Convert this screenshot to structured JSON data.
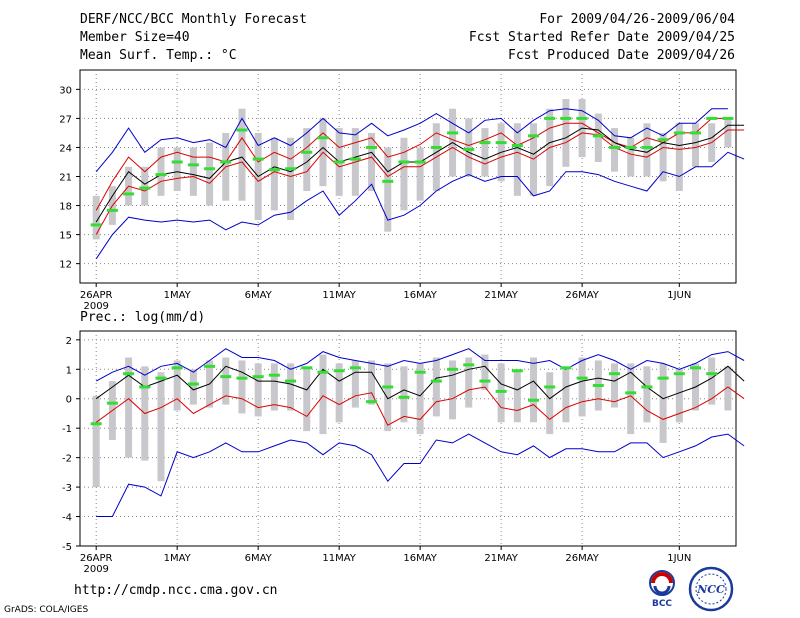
{
  "header": {
    "title": "DERF/NCC/BCC Monthly Forecast",
    "member": "Member Size=40",
    "variable": "Mean Surf. Temp.: °C",
    "period": "For 2009/04/26-2009/06/04",
    "refer": "Fcst Started Refer Date 2009/04/25",
    "produced": "Fcst Produced Date 2009/04/26"
  },
  "footer": {
    "url": "http://cmdp.ncc.cma.gov.cn",
    "credit": "GrADS: COLA/IGES"
  },
  "logos": {
    "left": "BCC",
    "right": "NCC"
  },
  "colors": {
    "max_min": "#0000cc",
    "spread": "#dd0000",
    "mean": "#000000",
    "obs": "#33dd33",
    "box": "#c8c8cc",
    "grid": "#888888"
  },
  "chart_data": [
    {
      "type": "line",
      "title": "Mean Surf. Temp.: °C",
      "ylabel": "Mean Surf. Temp.: °C",
      "ylim": [
        10,
        32
      ],
      "yticks": [
        12,
        15,
        18,
        21,
        24,
        27,
        30
      ],
      "xticks": [
        {
          "day": 0,
          "label": "26APR",
          "sub": "2009"
        },
        {
          "day": 5,
          "label": "1MAY"
        },
        {
          "day": 10,
          "label": "6MAY"
        },
        {
          "day": 15,
          "label": "11MAY"
        },
        {
          "day": 20,
          "label": "16MAY"
        },
        {
          "day": 25,
          "label": "21MAY"
        },
        {
          "day": 30,
          "label": "26MAY"
        },
        {
          "day": 36,
          "label": "1JUN"
        }
      ],
      "xlim": [
        -1,
        39.5
      ],
      "series": [
        {
          "name": "max",
          "values": [
            21.5,
            23.5,
            26,
            23.5,
            24.8,
            25,
            24.5,
            24.8,
            24,
            27,
            24.2,
            25,
            24.2,
            25.5,
            27,
            25.5,
            25.3,
            26.5,
            25.2,
            25.8,
            26.5,
            27.5,
            26.5,
            25.5,
            26.8,
            27,
            25.5,
            26.8,
            27.8,
            28,
            27.8,
            26.8,
            25.2,
            25,
            26,
            25.2,
            26.5,
            26.5,
            28,
            28
          ]
        },
        {
          "name": "upper",
          "values": [
            17.5,
            20.5,
            23,
            21.5,
            23,
            23.5,
            23,
            23,
            22.5,
            25,
            22.5,
            23.5,
            22.8,
            24,
            25.5,
            24,
            24.5,
            25,
            23,
            23.5,
            24.3,
            25.5,
            24.8,
            24.2,
            24.8,
            25.5,
            24.2,
            25,
            26,
            26.5,
            26.5,
            25.5,
            24.5,
            24,
            25,
            24.5,
            25.5,
            25.5,
            27,
            27
          ]
        },
        {
          "name": "mean",
          "values": [
            16.3,
            19,
            21.5,
            20.2,
            21.2,
            21.5,
            21.2,
            20.8,
            22.5,
            23,
            21,
            22,
            21.5,
            22.5,
            24,
            22.5,
            23,
            23.5,
            21.5,
            22.5,
            22.5,
            23.5,
            24.5,
            23.5,
            22.8,
            23.5,
            24,
            23.3,
            24.5,
            25,
            26,
            25.8,
            24.5,
            23.8,
            23.5,
            24.5,
            24.2,
            24.5,
            25,
            26.3,
            26.3
          ]
        },
        {
          "name": "lower",
          "values": [
            15,
            18,
            20,
            19.5,
            20.5,
            20.8,
            21,
            20.3,
            22,
            22.5,
            20.5,
            21.5,
            21,
            21.5,
            23.5,
            22,
            22.5,
            23,
            21,
            22,
            22,
            23,
            24,
            23,
            22.3,
            23,
            23.5,
            22.8,
            24,
            24.5,
            25.5,
            25.3,
            24,
            23.3,
            23,
            24,
            23.8,
            24,
            24.5,
            25.8,
            25.8
          ]
        },
        {
          "name": "min",
          "values": [
            12.5,
            15,
            16.8,
            16.5,
            16.3,
            16.5,
            16.3,
            16.5,
            15.5,
            16.3,
            16,
            17,
            17.3,
            18.5,
            19.5,
            17,
            18.5,
            20.2,
            16.5,
            17,
            18,
            19.5,
            20.5,
            21.2,
            20.5,
            21,
            21,
            19,
            19.5,
            21.5,
            21.5,
            21.2,
            20.5,
            20,
            19.5,
            21.5,
            21,
            22,
            22,
            23.5,
            22.8
          ]
        },
        {
          "name": "obs",
          "values": [
            16,
            17.5,
            19.2,
            19.8,
            21.2,
            22.5,
            22.2,
            21.8,
            22.5,
            25.8,
            22.8,
            21.7,
            21.8,
            23.5,
            25,
            22.5,
            22.8,
            24,
            20.5,
            22.5,
            22.5,
            24,
            25.5,
            23.8,
            24.5,
            24.5,
            24.2,
            25.2,
            27,
            27,
            27,
            25.2,
            24,
            24,
            24,
            24.8,
            25.5,
            25.5,
            27,
            27
          ]
        }
      ],
      "boxes": [
        [
          14.5,
          19
        ],
        [
          16,
          20
        ],
        [
          18,
          22
        ],
        [
          18,
          22
        ],
        [
          19,
          24
        ],
        [
          19.5,
          24
        ],
        [
          19,
          24
        ],
        [
          18,
          24.5
        ],
        [
          18.5,
          25.5
        ],
        [
          18.5,
          28
        ],
        [
          16.5,
          25.5
        ],
        [
          17.5,
          25
        ],
        [
          16.5,
          25
        ],
        [
          19.5,
          26
        ],
        [
          20,
          27
        ],
        [
          19,
          26
        ],
        [
          19,
          26
        ],
        [
          19.5,
          25.5
        ],
        [
          15.3,
          24
        ],
        [
          17.5,
          25
        ],
        [
          18.5,
          24
        ],
        [
          19.5,
          26.5
        ],
        [
          21,
          28
        ],
        [
          21,
          27
        ],
        [
          21,
          26
        ],
        [
          20.5,
          26.5
        ],
        [
          19,
          26.5
        ],
        [
          19,
          26.5
        ],
        [
          20,
          28
        ],
        [
          22,
          29
        ],
        [
          23,
          29
        ],
        [
          22.5,
          27.5
        ],
        [
          21.5,
          26
        ],
        [
          21,
          25
        ],
        [
          21,
          26.5
        ],
        [
          20.5,
          25.5
        ],
        [
          19.5,
          26.5
        ],
        [
          22,
          26.5
        ],
        [
          22.5,
          26.5
        ],
        [
          24,
          27
        ]
      ]
    },
    {
      "type": "line",
      "title": "Prec.: log(mm/d)",
      "ylabel": "Prec.: log(mm/d)",
      "ylim": [
        -5,
        2.3
      ],
      "yticks": [
        -5,
        -4,
        -3,
        -2,
        -1,
        0,
        1,
        2
      ],
      "xticks": [
        {
          "day": 0,
          "label": "26APR",
          "sub": "2009"
        },
        {
          "day": 5,
          "label": "1MAY"
        },
        {
          "day": 10,
          "label": "6MAY"
        },
        {
          "day": 15,
          "label": "11MAY"
        },
        {
          "day": 20,
          "label": "16MAY"
        },
        {
          "day": 25,
          "label": "21MAY"
        },
        {
          "day": 30,
          "label": "26MAY"
        },
        {
          "day": 36,
          "label": "1JUN"
        }
      ],
      "xlim": [
        -1,
        39.5
      ],
      "series": [
        {
          "name": "max",
          "values": [
            0.6,
            0.9,
            1.1,
            0.8,
            1.1,
            1.2,
            0.9,
            1.3,
            1.7,
            1.4,
            1.4,
            1.3,
            1.0,
            1.2,
            1.6,
            1.4,
            1.3,
            1.2,
            1.1,
            1.3,
            1.2,
            1.3,
            1.5,
            1.7,
            1.3,
            1.3,
            1.3,
            1.2,
            1.3,
            1.0,
            1.3,
            1.5,
            1.3,
            1.0,
            1.3,
            1.2,
            1.0,
            1.2,
            1.5,
            1.6,
            1.3
          ]
        },
        {
          "name": "mean",
          "values": [
            0.0,
            0.4,
            0.8,
            0.4,
            0.6,
            0.8,
            0.3,
            0.5,
            1.1,
            0.9,
            0.6,
            0.6,
            0.5,
            0.3,
            1.0,
            0.6,
            0.9,
            0.9,
            0.0,
            0.3,
            0.1,
            0.7,
            0.8,
            1.0,
            1.1,
            0.5,
            0.3,
            0.6,
            0.0,
            0.4,
            0.6,
            0.7,
            0.6,
            0.9,
            0.4,
            0.0,
            0.2,
            0.4,
            0.7,
            1.1,
            0.6
          ]
        },
        {
          "name": "lower",
          "values": [
            -0.8,
            -0.4,
            0.0,
            -0.5,
            -0.3,
            0.0,
            -0.5,
            -0.2,
            0.1,
            0.0,
            -0.3,
            -0.2,
            -0.3,
            -0.6,
            0.1,
            -0.2,
            0.1,
            0.2,
            -0.9,
            -0.6,
            -0.7,
            -0.1,
            0.0,
            0.3,
            0.4,
            -0.3,
            -0.4,
            -0.2,
            -0.7,
            -0.3,
            -0.1,
            0.0,
            -0.1,
            0.1,
            -0.4,
            -0.7,
            -0.5,
            -0.3,
            0.0,
            0.4,
            0.0
          ]
        },
        {
          "name": "min",
          "values": [
            -4.0,
            -4.0,
            -2.9,
            -3.0,
            -3.3,
            -1.8,
            -2.0,
            -1.8,
            -1.5,
            -1.8,
            -1.8,
            -1.6,
            -1.4,
            -1.5,
            -1.9,
            -1.5,
            -1.6,
            -1.9,
            -2.8,
            -2.2,
            -2.2,
            -1.4,
            -1.5,
            -1.2,
            -1.5,
            -1.8,
            -1.9,
            -1.6,
            -2.0,
            -1.7,
            -1.7,
            -1.8,
            -1.8,
            -1.5,
            -1.5,
            -2.0,
            -1.8,
            -1.6,
            -1.3,
            -1.2,
            -1.6
          ]
        },
        {
          "name": "obs",
          "values": [
            -0.85,
            -0.15,
            0.85,
            0.4,
            0.7,
            1.05,
            0.5,
            1.1,
            0.75,
            0.7,
            0.75,
            0.8,
            0.6,
            1.05,
            0.9,
            0.95,
            1.05,
            -0.1,
            0.4,
            0.05,
            0.9,
            0.6,
            1.0,
            1.15,
            0.6,
            0.25,
            0.95,
            -0.05,
            0.4,
            1.05,
            0.7,
            0.45,
            0.85,
            0.2,
            0.4,
            0.7,
            0.85,
            1.05,
            0.85
          ]
        }
      ],
      "boxes": [
        [
          -3,
          0.1
        ],
        [
          -1.4,
          0.6
        ],
        [
          -2,
          1.4
        ],
        [
          -2.1,
          1.1
        ],
        [
          -2.8,
          0.9
        ],
        [
          -0.4,
          1.3
        ],
        [
          -0.2,
          1.0
        ],
        [
          -0.3,
          1.3
        ],
        [
          -0.2,
          1.4
        ],
        [
          -0.5,
          1.3
        ],
        [
          -0.6,
          1.2
        ],
        [
          -0.4,
          1.2
        ],
        [
          -0.4,
          1.2
        ],
        [
          -1.1,
          1.0
        ],
        [
          -1.2,
          1.5
        ],
        [
          -0.8,
          1.2
        ],
        [
          -0.3,
          1.3
        ],
        [
          -0.2,
          1.3
        ],
        [
          -1.1,
          1.2
        ],
        [
          -0.8,
          1.1
        ],
        [
          -1.2,
          1.2
        ],
        [
          -0.6,
          1.4
        ],
        [
          -0.7,
          1.3
        ],
        [
          -0.3,
          1.4
        ],
        [
          0.3,
          1.5
        ],
        [
          -0.8,
          1.2
        ],
        [
          -0.8,
          1.0
        ],
        [
          -0.8,
          1.4
        ],
        [
          -1.2,
          0.9
        ],
        [
          -0.8,
          1.0
        ],
        [
          -0.6,
          1.4
        ],
        [
          -0.4,
          1.3
        ],
        [
          -0.3,
          1.2
        ],
        [
          -1.2,
          1.2
        ],
        [
          -0.8,
          1.1
        ],
        [
          -1.5,
          1.2
        ],
        [
          -0.8,
          1.0
        ],
        [
          -0.4,
          1.2
        ],
        [
          -0.2,
          1.4
        ],
        [
          -0.4,
          1.1
        ]
      ]
    }
  ]
}
